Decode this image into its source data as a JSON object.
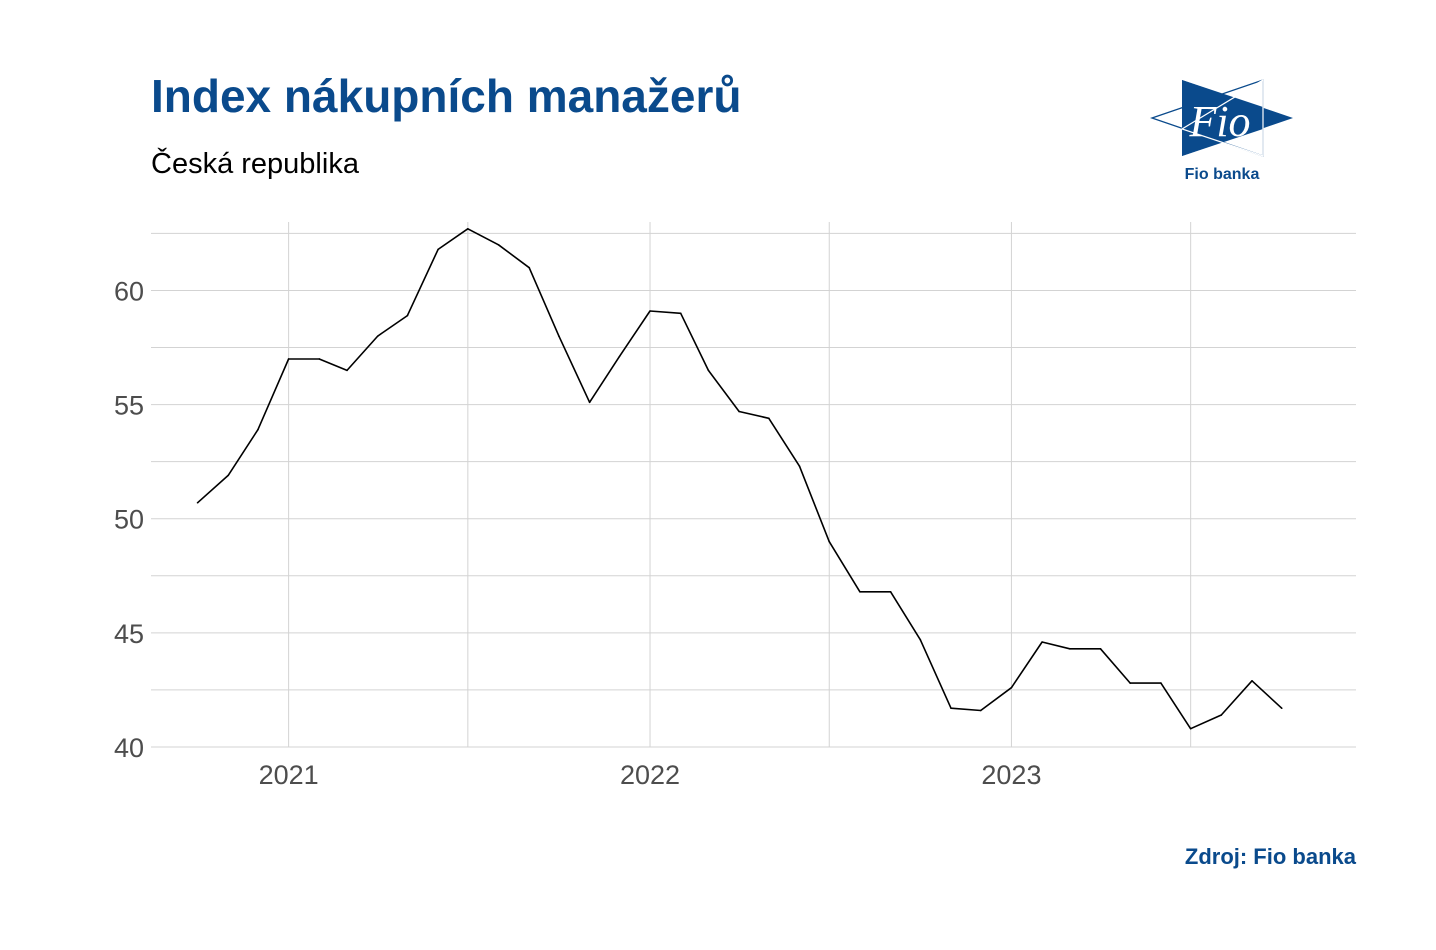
{
  "title": "Index nákupních manažerů",
  "subtitle": "Česká republika",
  "source": "Zdroj: Fio banka",
  "logo": {
    "text": "Fio",
    "caption": "Fio banka",
    "icon": "fio-banka-logo-icon",
    "color": "#0a4a8c"
  },
  "colors": {
    "title": "#0a4a8c",
    "line": "#000000",
    "grid": "#d3d3d3",
    "tick_text": "#4d4d4d"
  },
  "chart_data": {
    "type": "line",
    "title": "Index nákupních manažerů",
    "subtitle": "Česká republika",
    "xlabel": "",
    "ylabel": "",
    "xlim": [
      "2020-08-15",
      "2023-12-15"
    ],
    "ylim": [
      40,
      63
    ],
    "grid": true,
    "legend": "none",
    "x_ticks": [
      {
        "date": "2021-01-01",
        "label": "2021"
      },
      {
        "date": "2022-01-01",
        "label": "2022"
      },
      {
        "date": "2023-01-01",
        "label": "2023"
      }
    ],
    "x_minor_ticks": [
      "2021-07-01",
      "2022-07-01",
      "2023-07-01"
    ],
    "y_ticks": [
      40,
      45,
      50,
      55,
      60
    ],
    "y_minor_ticks": [
      42.5,
      47.5,
      52.5,
      57.5,
      62.5
    ],
    "series": [
      {
        "color": "#000000",
        "points": [
          {
            "x": "2020-10-01",
            "y": 50.7
          },
          {
            "x": "2020-11-01",
            "y": 51.9
          },
          {
            "x": "2020-12-01",
            "y": 53.9
          },
          {
            "x": "2021-01-01",
            "y": 57.0
          },
          {
            "x": "2021-02-01",
            "y": 57.0
          },
          {
            "x": "2021-03-01",
            "y": 56.5
          },
          {
            "x": "2021-04-01",
            "y": 58.0
          },
          {
            "x": "2021-05-01",
            "y": 58.9
          },
          {
            "x": "2021-06-01",
            "y": 61.8
          },
          {
            "x": "2021-07-01",
            "y": 62.7
          },
          {
            "x": "2021-08-01",
            "y": 62.0
          },
          {
            "x": "2021-09-01",
            "y": 61.0
          },
          {
            "x": "2021-10-01",
            "y": 58.0
          },
          {
            "x": "2021-11-01",
            "y": 55.1
          },
          {
            "x": "2021-12-01",
            "y": 57.1
          },
          {
            "x": "2022-01-01",
            "y": 59.1
          },
          {
            "x": "2022-02-01",
            "y": 59.0
          },
          {
            "x": "2022-03-01",
            "y": 56.5
          },
          {
            "x": "2022-04-01",
            "y": 54.7
          },
          {
            "x": "2022-05-01",
            "y": 54.4
          },
          {
            "x": "2022-06-01",
            "y": 52.3
          },
          {
            "x": "2022-07-01",
            "y": 49.0
          },
          {
            "x": "2022-08-01",
            "y": 46.8
          },
          {
            "x": "2022-09-01",
            "y": 46.8
          },
          {
            "x": "2022-10-01",
            "y": 44.7
          },
          {
            "x": "2022-11-01",
            "y": 41.7
          },
          {
            "x": "2022-12-01",
            "y": 41.6
          },
          {
            "x": "2023-01-01",
            "y": 42.6
          },
          {
            "x": "2023-02-01",
            "y": 44.6
          },
          {
            "x": "2023-03-01",
            "y": 44.3
          },
          {
            "x": "2023-04-01",
            "y": 44.3
          },
          {
            "x": "2023-05-01",
            "y": 42.8
          },
          {
            "x": "2023-06-01",
            "y": 42.8
          },
          {
            "x": "2023-07-01",
            "y": 40.8
          },
          {
            "x": "2023-08-01",
            "y": 41.4
          },
          {
            "x": "2023-09-01",
            "y": 42.9
          },
          {
            "x": "2023-10-01",
            "y": 41.7
          }
        ]
      }
    ]
  }
}
